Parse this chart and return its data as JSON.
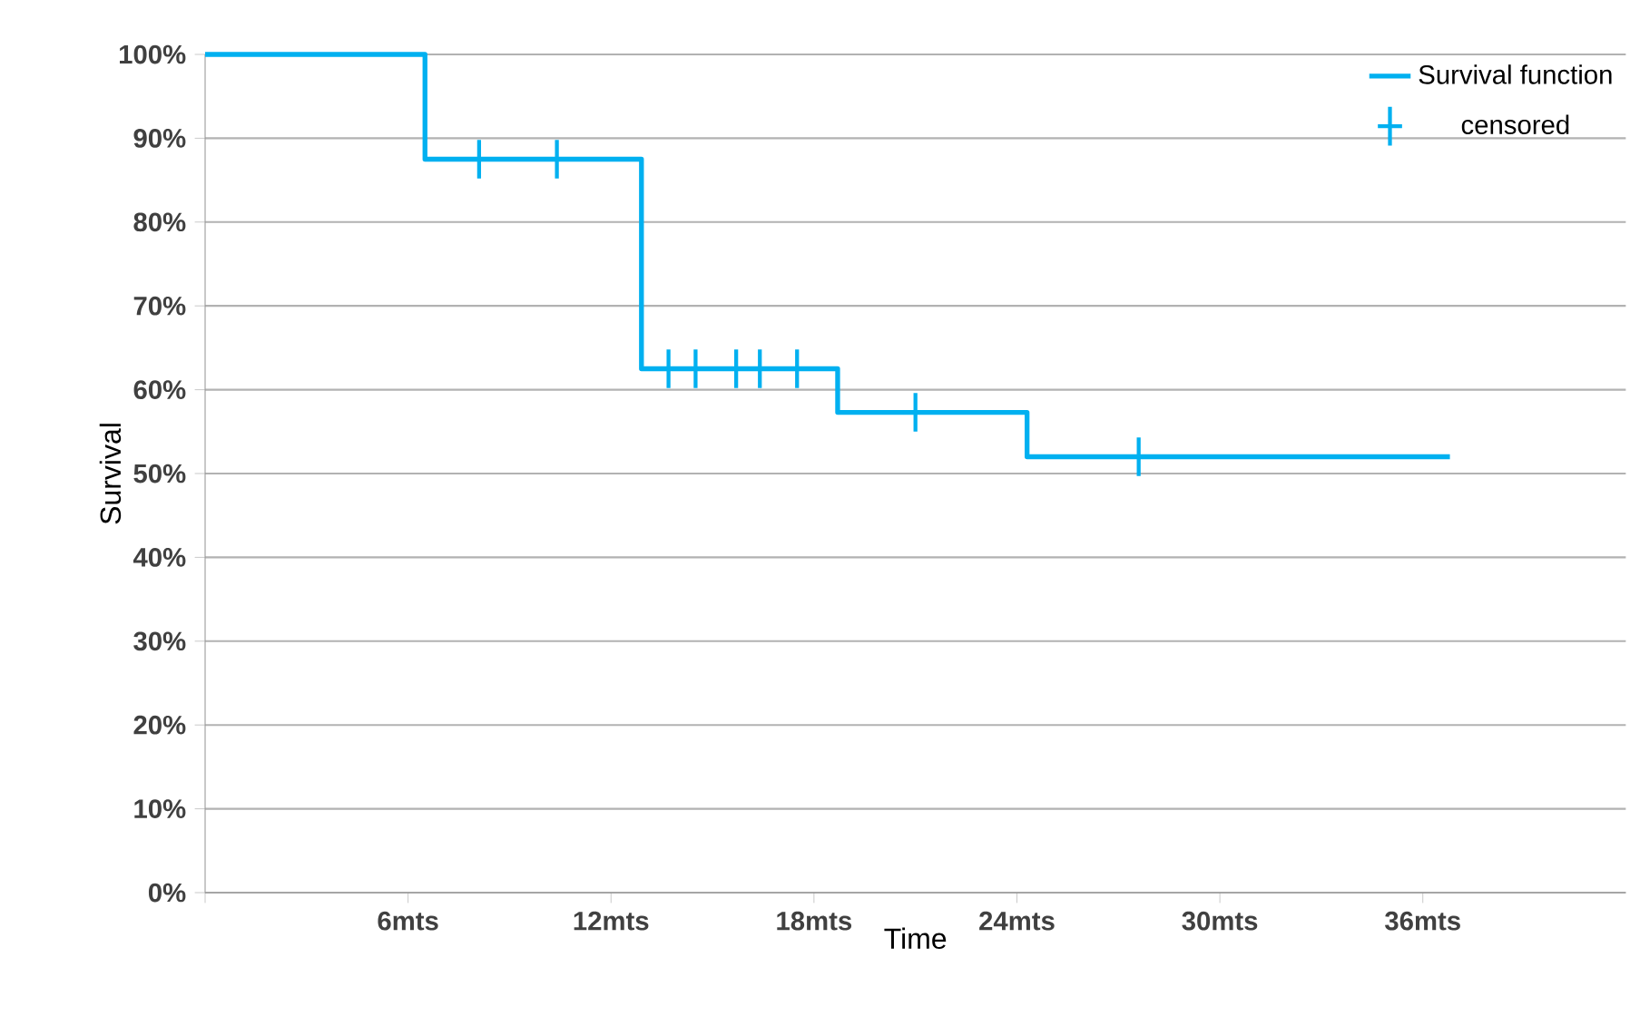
{
  "chart_data": {
    "type": "step",
    "xlabel": "Time",
    "ylabel": "Survival",
    "xlim": [
      0,
      42
    ],
    "ylim": [
      0,
      100
    ],
    "xticks": [
      {
        "value": 0,
        "label": null
      },
      {
        "value": 6,
        "label": "6mts"
      },
      {
        "value": 12,
        "label": "12mts"
      },
      {
        "value": 18,
        "label": "18mts"
      },
      {
        "value": 24,
        "label": "24mts"
      },
      {
        "value": 30,
        "label": "30mts"
      },
      {
        "value": 36,
        "label": "36mts"
      }
    ],
    "yticks": [
      {
        "value": 0,
        "label": "0%"
      },
      {
        "value": 10,
        "label": "10%"
      },
      {
        "value": 20,
        "label": "20%"
      },
      {
        "value": 30,
        "label": "30%"
      },
      {
        "value": 40,
        "label": "40%"
      },
      {
        "value": 50,
        "label": "50%"
      },
      {
        "value": 60,
        "label": "60%"
      },
      {
        "value": 70,
        "label": "70%"
      },
      {
        "value": 80,
        "label": "80%"
      },
      {
        "value": 90,
        "label": "90%"
      },
      {
        "value": 100,
        "label": "100%"
      }
    ],
    "grid": "y",
    "legend": "top right",
    "series": [
      {
        "name": "Survival function",
        "color": "#00b0f0",
        "x": [
          0,
          6.5,
          12.9,
          18.7,
          24.3,
          36.8
        ],
        "values": [
          100,
          87.5,
          62.5,
          57.3,
          52,
          52
        ]
      },
      {
        "name": "censored",
        "type": "scatter",
        "marker": "cross",
        "color": "#00b0f0",
        "x": [
          8.1,
          10.4,
          13.7,
          14.5,
          15.7,
          16.4,
          17.5,
          21.0,
          27.6
        ],
        "values": [
          87.5,
          87.5,
          62.5,
          62.5,
          62.5,
          62.5,
          62.5,
          57.3,
          52
        ]
      }
    ]
  }
}
